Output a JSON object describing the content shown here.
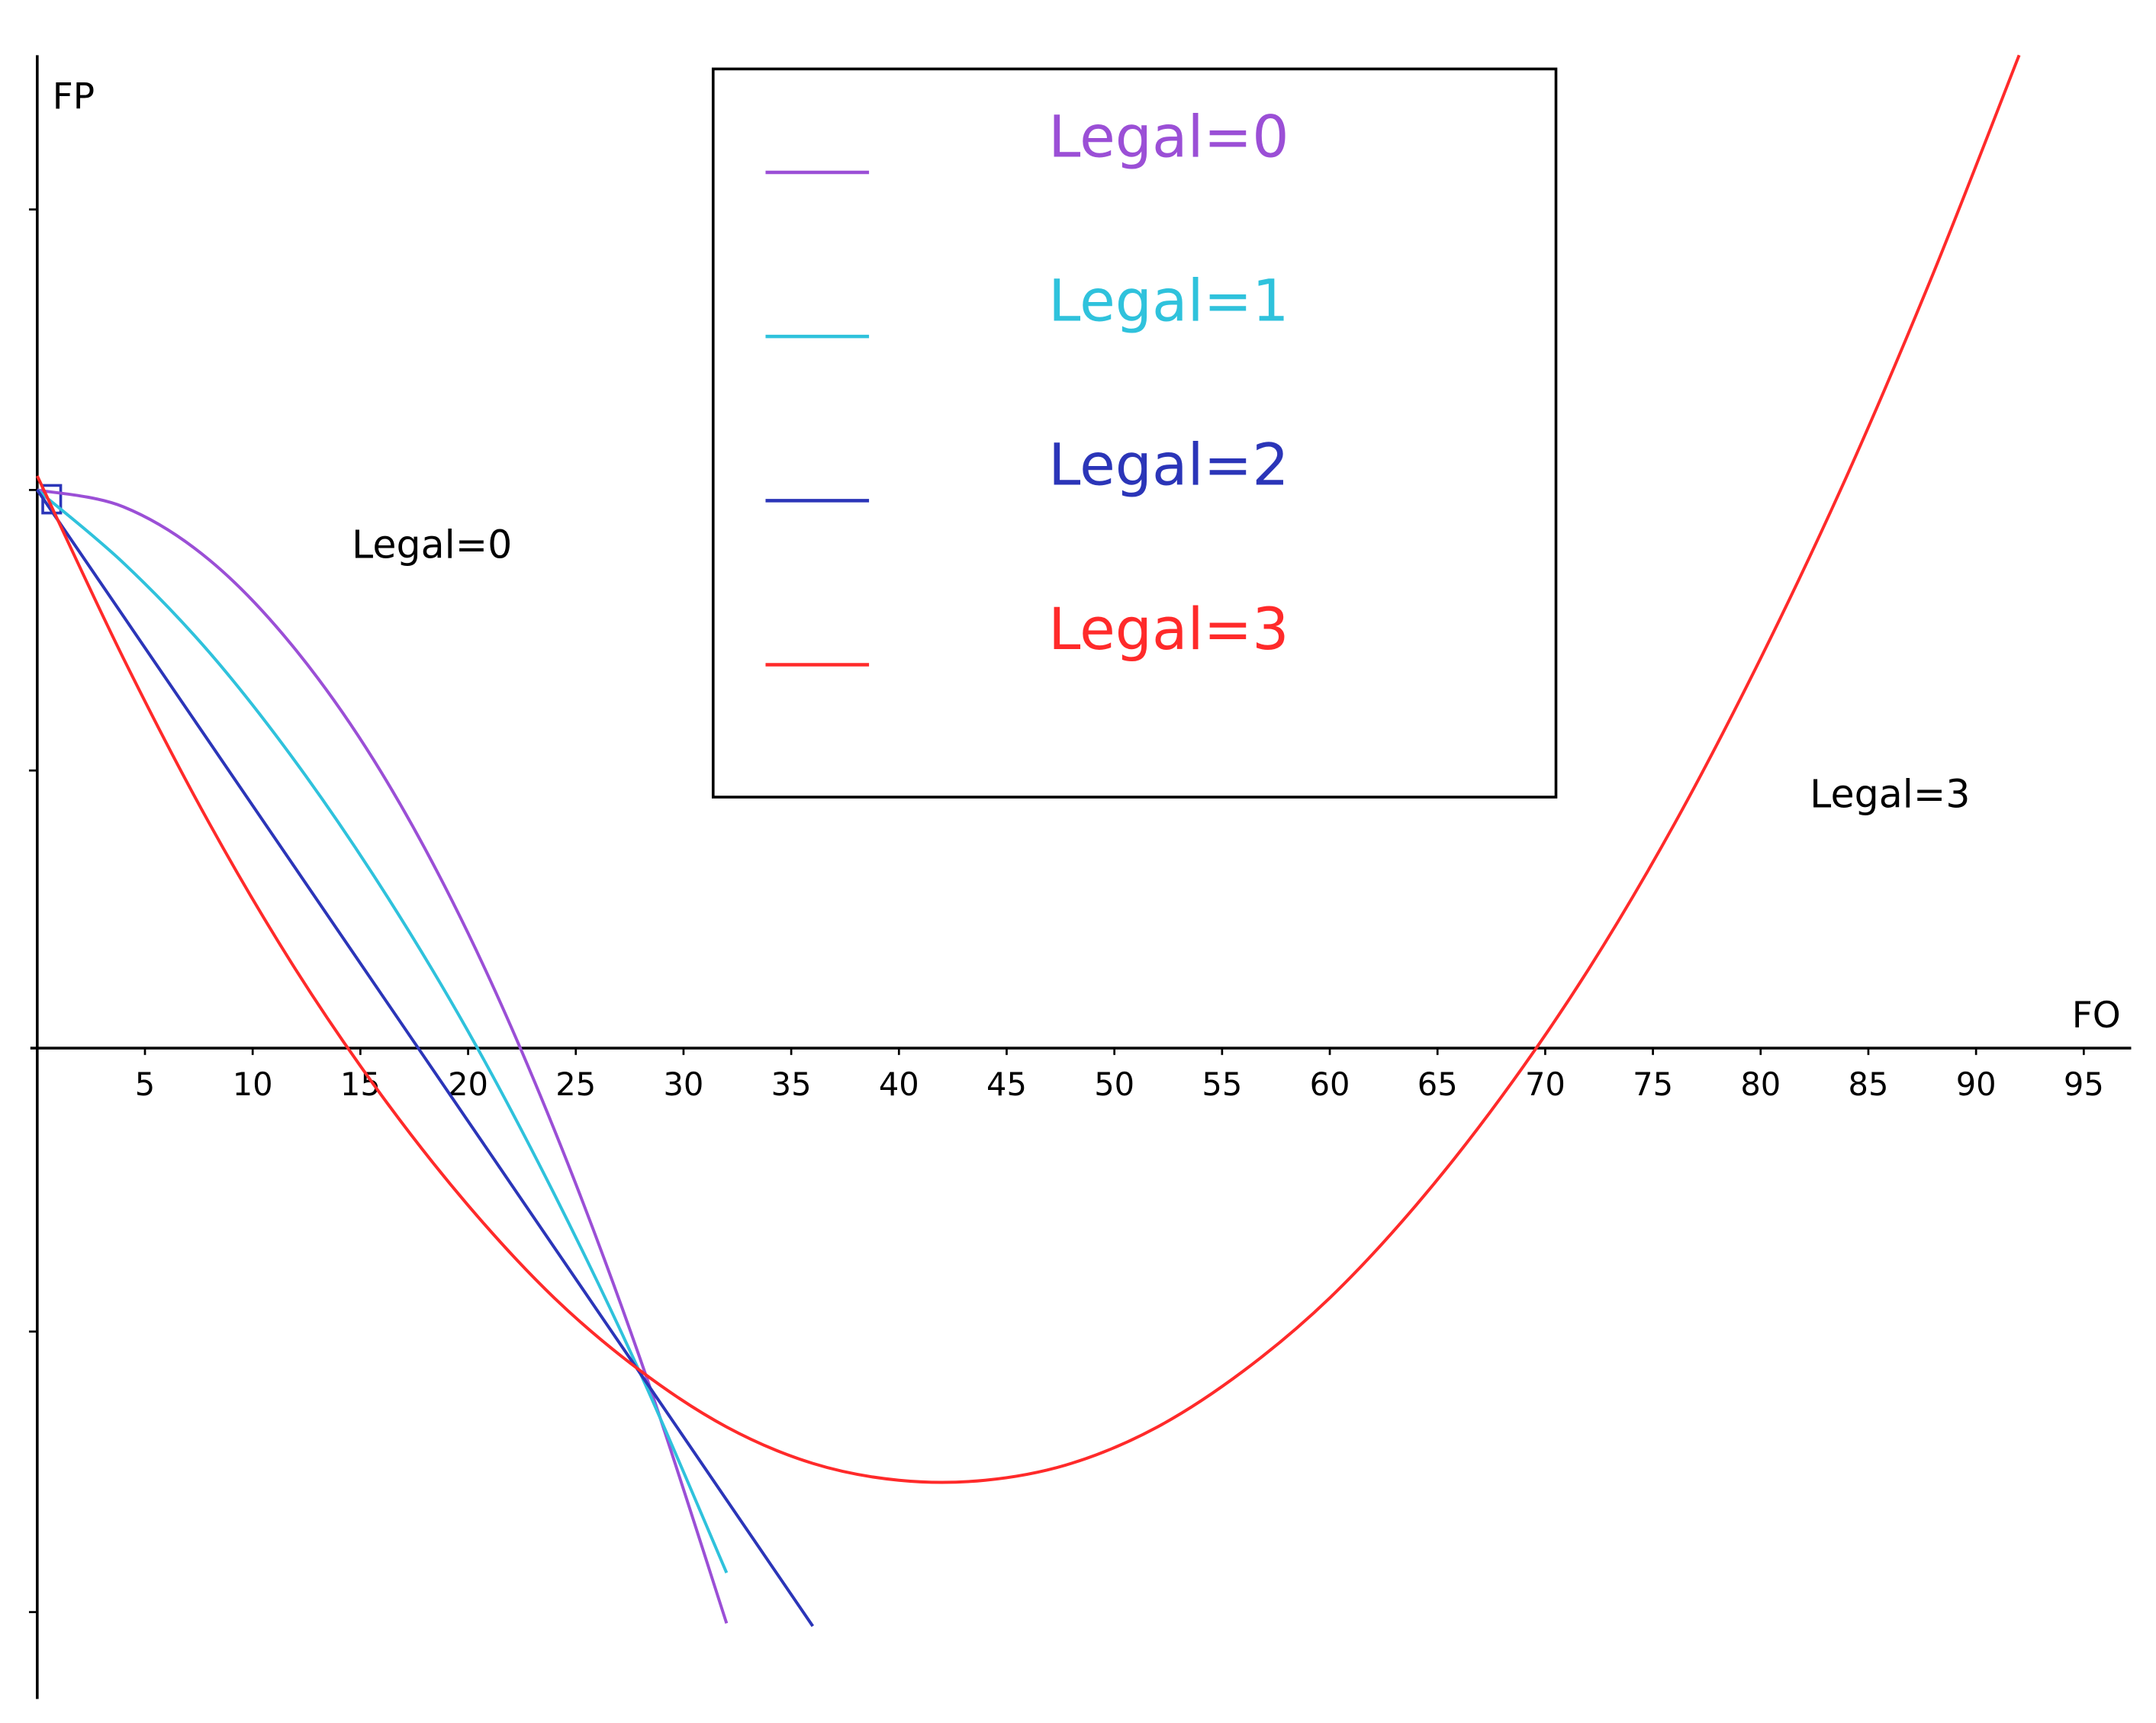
{
  "chart_data": {
    "type": "line",
    "x_label": "FO",
    "y_label": "FP",
    "x": [
      0,
      4,
      8,
      12,
      16,
      20,
      24,
      28,
      32,
      36,
      40,
      44,
      48,
      52,
      56,
      60,
      64,
      68,
      72,
      76,
      80,
      84,
      88,
      92
    ],
    "series": [
      {
        "name": "Legal=0",
        "color": "#9b4fd6",
        "values": [
          2,
          1.94,
          1.75,
          1.43,
          0.99,
          0.42,
          -0.28,
          -1.1,
          -2.04,
          null,
          null,
          null,
          null,
          null,
          null,
          null,
          null,
          null,
          null,
          null,
          null,
          null,
          null,
          null
        ]
      },
      {
        "name": "Legal=1",
        "color": "#2fc2dc",
        "values": [
          2,
          1.74,
          1.42,
          1.03,
          0.58,
          0.07,
          -0.51,
          -1.15,
          -1.86,
          null,
          null,
          null,
          null,
          null,
          null,
          null,
          null,
          null,
          null,
          null,
          null,
          null,
          null,
          null
        ]
      },
      {
        "name": "Legal=2",
        "color": "#2b35b8",
        "values": [
          2,
          1.55,
          1.1,
          0.65,
          0.2,
          -0.25,
          -0.7,
          -1.15,
          -1.6,
          -2.05,
          null,
          null,
          null,
          null,
          null,
          null,
          null,
          null,
          null,
          null,
          null,
          null,
          null,
          null
        ]
      },
      {
        "name": "Legal=3",
        "color": "#ff2a2a",
        "values": [
          2.05,
          1.4,
          0.81,
          0.29,
          -0.16,
          -0.55,
          -0.88,
          -1.14,
          -1.34,
          -1.47,
          -1.53,
          -1.53,
          -1.47,
          -1.34,
          -1.14,
          -0.88,
          -0.55,
          -0.16,
          0.29,
          0.81,
          1.4,
          2.05,
          2.77,
          3.55
        ]
      }
    ],
    "xlim": [
      0,
      97.2
    ],
    "ylim": [
      -2.3,
      3.55
    ],
    "xticks": [
      5,
      10,
      15,
      20,
      25,
      30,
      35,
      40,
      45,
      50,
      55,
      60,
      65,
      70,
      75,
      80,
      85,
      90,
      95
    ],
    "yticks": [
      -2,
      -1,
      1,
      2,
      3
    ],
    "annotations": [
      "Legal=0",
      "Legal=3"
    ],
    "legend": "top-center"
  }
}
